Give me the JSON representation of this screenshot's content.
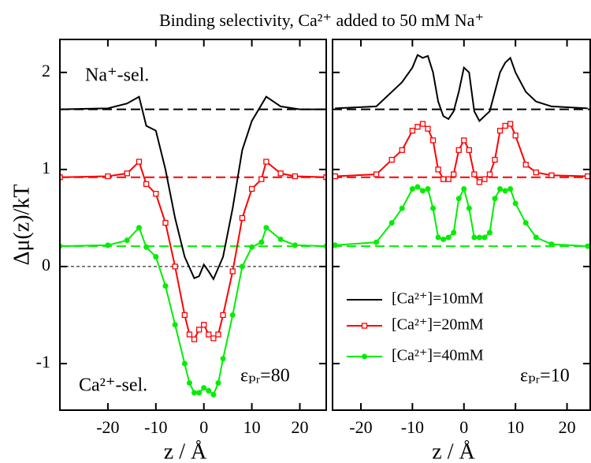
{
  "chart_data": [
    {
      "type": "line",
      "title": "Binding selectivity, Ca²⁺ added to 50 mM Na⁺",
      "ylabel": "Δμ(z)/kT",
      "xlabel": "z / Å",
      "xlim": [
        -30,
        25.5
      ],
      "xticks": [
        -20,
        -10,
        0,
        10,
        20
      ],
      "ylim": [
        -1.48,
        2.34
      ],
      "yticks": [
        -1,
        0,
        1,
        2
      ],
      "show_ytick_labels": true,
      "annotations": [
        "Na⁺-sel.",
        "Ca²⁺-sel.",
        "εₚᵣ=80"
      ],
      "hlines": [
        {
          "value": 1.62,
          "color": "#000000",
          "style": "dashed"
        },
        {
          "value": 0.92,
          "color": "#ff0000",
          "style": "dashed"
        },
        {
          "value": 0.21,
          "color": "#00ee00",
          "style": "dashed"
        },
        {
          "value": 0,
          "color": "#000000",
          "style": "dotted"
        }
      ],
      "legend": false,
      "series": [
        {
          "color": "#000000",
          "marker": "none",
          "x": [
            -30,
            -20,
            -16,
            -13.5,
            -12,
            -10,
            -8,
            -6,
            -4,
            -2,
            -1,
            0,
            1,
            2,
            4,
            6,
            8,
            10,
            13,
            16,
            20,
            25.5
          ],
          "values": [
            1.62,
            1.63,
            1.68,
            1.75,
            1.45,
            1.4,
            1.0,
            0.5,
            0.1,
            -0.12,
            -0.1,
            0.02,
            -0.05,
            -0.13,
            0.1,
            0.6,
            1.2,
            1.5,
            1.75,
            1.65,
            1.62,
            1.62
          ]
        },
        {
          "color": "#ff0000",
          "marker": "square",
          "x": [
            -30,
            -20,
            -16,
            -13.5,
            -12,
            -10,
            -8,
            -6,
            -4,
            -3,
            -2,
            -1,
            0,
            1,
            2,
            3,
            4,
            6,
            8,
            10,
            12,
            13,
            16,
            19,
            25.5
          ],
          "values": [
            0.92,
            0.93,
            0.96,
            1.08,
            0.85,
            0.75,
            0.45,
            0.0,
            -0.5,
            -0.7,
            -0.75,
            -0.65,
            -0.6,
            -0.7,
            -0.74,
            -0.7,
            -0.5,
            -0.05,
            0.5,
            0.8,
            0.9,
            1.08,
            0.96,
            0.93,
            0.92
          ]
        },
        {
          "color": "#00ee00",
          "marker": "circle",
          "x": [
            -30,
            -20,
            -16,
            -13.5,
            -12,
            -10,
            -8,
            -6,
            -4,
            -3,
            -2,
            -1,
            0,
            1,
            2,
            3,
            4,
            6,
            8,
            10,
            12,
            13,
            16,
            19,
            25.5
          ],
          "values": [
            0.21,
            0.22,
            0.27,
            0.4,
            0.2,
            0.1,
            -0.2,
            -0.6,
            -1.0,
            -1.2,
            -1.3,
            -1.3,
            -1.25,
            -1.28,
            -1.32,
            -1.2,
            -0.95,
            -0.5,
            0.0,
            0.2,
            0.25,
            0.4,
            0.28,
            0.22,
            0.21
          ]
        }
      ]
    },
    {
      "type": "line",
      "xlabel": "z / Å",
      "xlim": [
        -25.5,
        24.5
      ],
      "xticks": [
        -20,
        -10,
        0,
        10,
        20
      ],
      "ylim": [
        -1.48,
        2.34
      ],
      "yticks": [
        -1,
        0,
        1,
        2
      ],
      "show_ytick_labels": false,
      "annotations": [
        "εₚᵣ=10"
      ],
      "hlines": [
        {
          "value": 1.62,
          "color": "#000000",
          "style": "dashed"
        },
        {
          "value": 0.92,
          "color": "#ff0000",
          "style": "dashed"
        },
        {
          "value": 0.21,
          "color": "#00ee00",
          "style": "dashed"
        }
      ],
      "legend": true,
      "series": [
        {
          "name": "[Ca²⁺]=10mM",
          "color": "#000000",
          "marker": "none",
          "x": [
            -25,
            -17,
            -14,
            -12,
            -10,
            -9,
            -8,
            -7,
            -6,
            -5,
            -4,
            -3,
            -2,
            -1,
            0,
            1,
            2,
            3,
            4,
            5,
            6,
            7,
            8,
            9,
            10,
            12,
            14,
            17,
            24
          ],
          "values": [
            1.63,
            1.65,
            1.8,
            1.9,
            2.05,
            2.18,
            2.15,
            2.17,
            2.0,
            1.7,
            1.55,
            1.52,
            1.6,
            1.8,
            2.05,
            2.0,
            1.6,
            1.5,
            1.55,
            1.6,
            1.8,
            2.0,
            2.1,
            2.15,
            2.0,
            1.8,
            1.7,
            1.65,
            1.63
          ]
        },
        {
          "name": "[Ca²⁺]=20mM",
          "color": "#ff0000",
          "marker": "square",
          "x": [
            -25,
            -17,
            -14,
            -12,
            -10,
            -9,
            -8,
            -7,
            -6,
            -5,
            -4,
            -3,
            -2,
            -1,
            0,
            1,
            2,
            3,
            4,
            5,
            6,
            7,
            8,
            9,
            10,
            12,
            14,
            17,
            24
          ],
          "values": [
            0.93,
            0.95,
            1.1,
            1.2,
            1.4,
            1.44,
            1.47,
            1.42,
            1.3,
            1.0,
            0.9,
            0.9,
            0.95,
            1.2,
            1.3,
            1.2,
            0.95,
            0.87,
            0.9,
            0.95,
            1.1,
            1.4,
            1.45,
            1.47,
            1.35,
            1.05,
            0.97,
            0.94,
            0.93
          ]
        },
        {
          "name": "[Ca²⁺]=40mM",
          "color": "#00ee00",
          "marker": "circle",
          "x": [
            -25,
            -17,
            -14,
            -12,
            -10,
            -9,
            -8,
            -7,
            -6,
            -5,
            -4,
            -3,
            -2,
            -1,
            0,
            1,
            2,
            3,
            4,
            5,
            6,
            7,
            8,
            9,
            10,
            12,
            14,
            17,
            24
          ],
          "values": [
            0.22,
            0.25,
            0.45,
            0.6,
            0.8,
            0.82,
            0.78,
            0.8,
            0.6,
            0.3,
            0.28,
            0.3,
            0.35,
            0.7,
            0.8,
            0.6,
            0.3,
            0.3,
            0.3,
            0.35,
            0.7,
            0.8,
            0.78,
            0.8,
            0.65,
            0.45,
            0.3,
            0.23,
            0.21
          ]
        }
      ]
    }
  ]
}
